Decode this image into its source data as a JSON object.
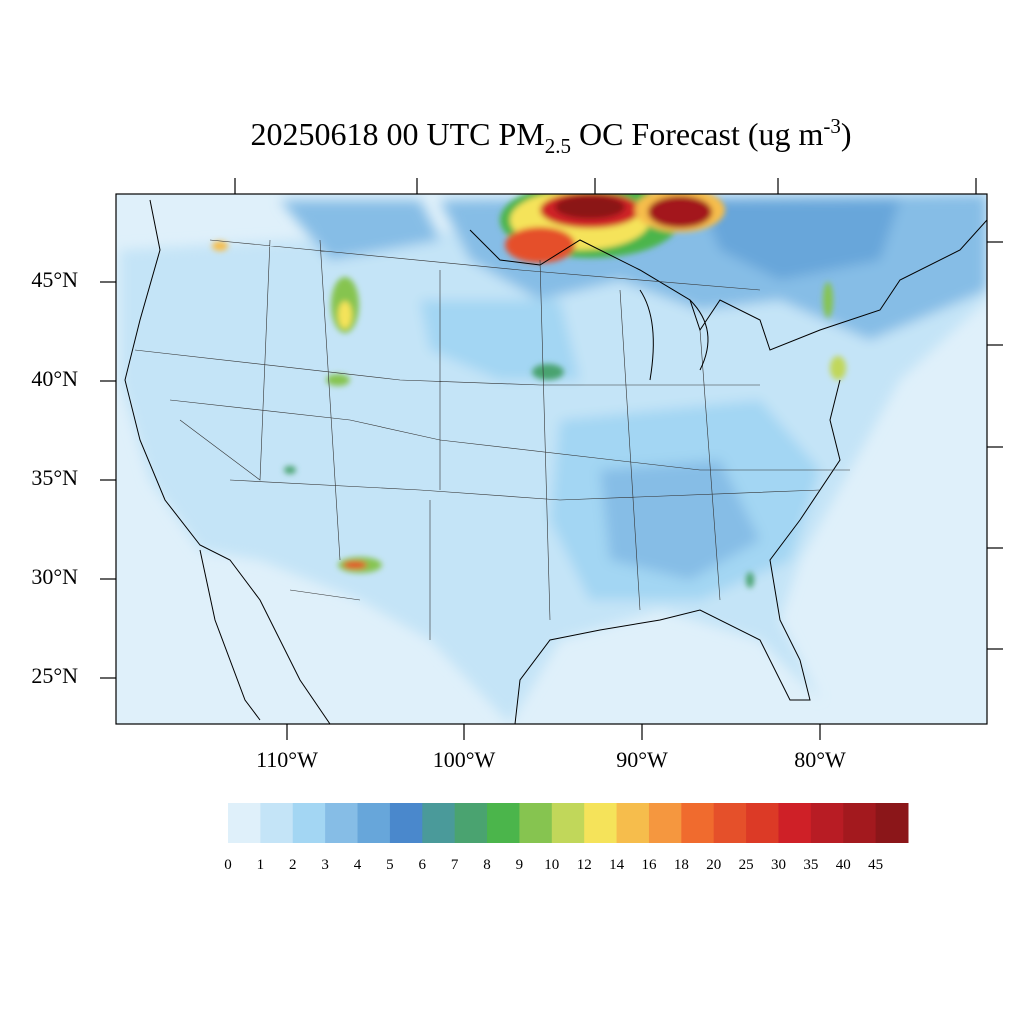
{
  "title": {
    "main": "20250618 00 UTC PM",
    "sub": "2.5",
    "mid": " OC Forecast (ug m",
    "sup": "-3",
    "end": ")"
  },
  "lat_labels": [
    "45°N",
    "40°N",
    "35°N",
    "30°N",
    "25°N"
  ],
  "lon_labels": [
    "110°W",
    "100°W",
    "90°W",
    "80°W"
  ],
  "colorbar": {
    "levels": [
      0,
      1,
      2,
      3,
      4,
      5,
      6,
      7,
      8,
      9,
      10,
      12,
      14,
      16,
      18,
      20,
      25,
      30,
      35,
      40,
      45
    ],
    "colors": [
      "#dff0fa",
      "#c4e4f7",
      "#a3d6f3",
      "#86bde6",
      "#67a6da",
      "#4a88cc",
      "#4a9a9a",
      "#4aa370",
      "#4bb54b",
      "#86c450",
      "#c1d75a",
      "#f5e35a",
      "#f6bd4c",
      "#f5973f",
      "#f06b2e",
      "#e5502a",
      "#dc3a26",
      "#cf2027",
      "#b81c24",
      "#a3191e",
      "#8b1619"
    ]
  }
}
